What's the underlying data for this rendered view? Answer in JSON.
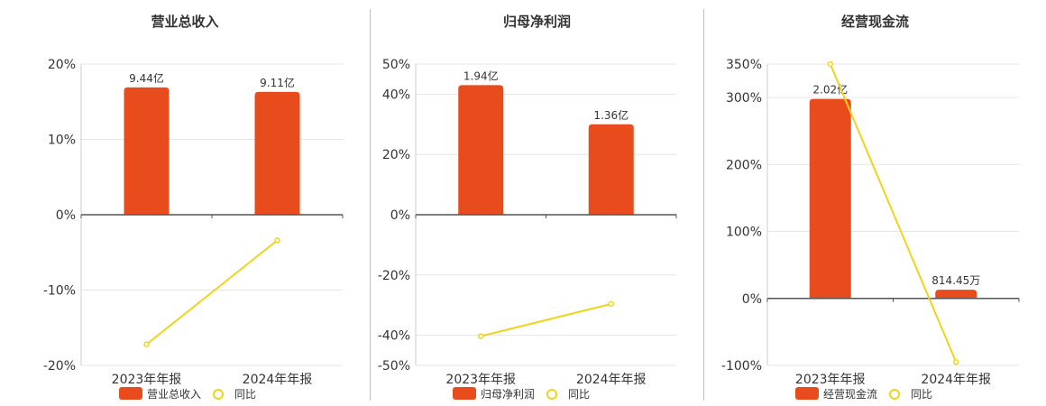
{
  "colors": {
    "bar": "#E84C1C",
    "line": "#F0D31C",
    "axis": "#555555",
    "grid": "#e6e6e6",
    "text": "#333333"
  },
  "chart_data": [
    {
      "type": "bar",
      "title": "营业总收入",
      "categories": [
        "2023年年报",
        "2024年年报"
      ],
      "series": [
        {
          "name": "营业总收入",
          "type": "bar",
          "values": [
            16.9,
            16.3
          ],
          "labels": [
            "9.44亿",
            "9.11亿"
          ]
        },
        {
          "name": "同比",
          "type": "line",
          "values": [
            -17.2,
            -3.4
          ]
        }
      ],
      "yticks": [
        "20%",
        "10%",
        "0%",
        "-10%",
        "-20%"
      ],
      "ylim": [
        -20,
        20
      ]
    },
    {
      "type": "bar",
      "title": "归母净利润",
      "categories": [
        "2023年年报",
        "2024年年报"
      ],
      "series": [
        {
          "name": "归母净利润",
          "type": "bar",
          "values": [
            43,
            30
          ],
          "labels": [
            "1.94亿",
            "1.36亿"
          ]
        },
        {
          "name": "同比",
          "type": "line",
          "values": [
            -40.3,
            -29.6
          ]
        }
      ],
      "yticks": [
        "50%",
        "40%",
        "20%",
        "0%",
        "-20%",
        "-40%",
        "-50%"
      ],
      "ylim": [
        -50,
        50
      ]
    },
    {
      "type": "bar",
      "title": "经营现金流",
      "categories": [
        "2023年年报",
        "2024年年报"
      ],
      "series": [
        {
          "name": "经营现金流",
          "type": "bar",
          "values": [
            298,
            13
          ],
          "labels": [
            "2.02亿",
            "814.45万"
          ]
        },
        {
          "name": "同比",
          "type": "line",
          "values": [
            350,
            -95
          ]
        }
      ],
      "yticks": [
        "350%",
        "300%",
        "200%",
        "100%",
        "0%",
        "-100%"
      ],
      "ylim": [
        -100,
        350
      ]
    }
  ]
}
